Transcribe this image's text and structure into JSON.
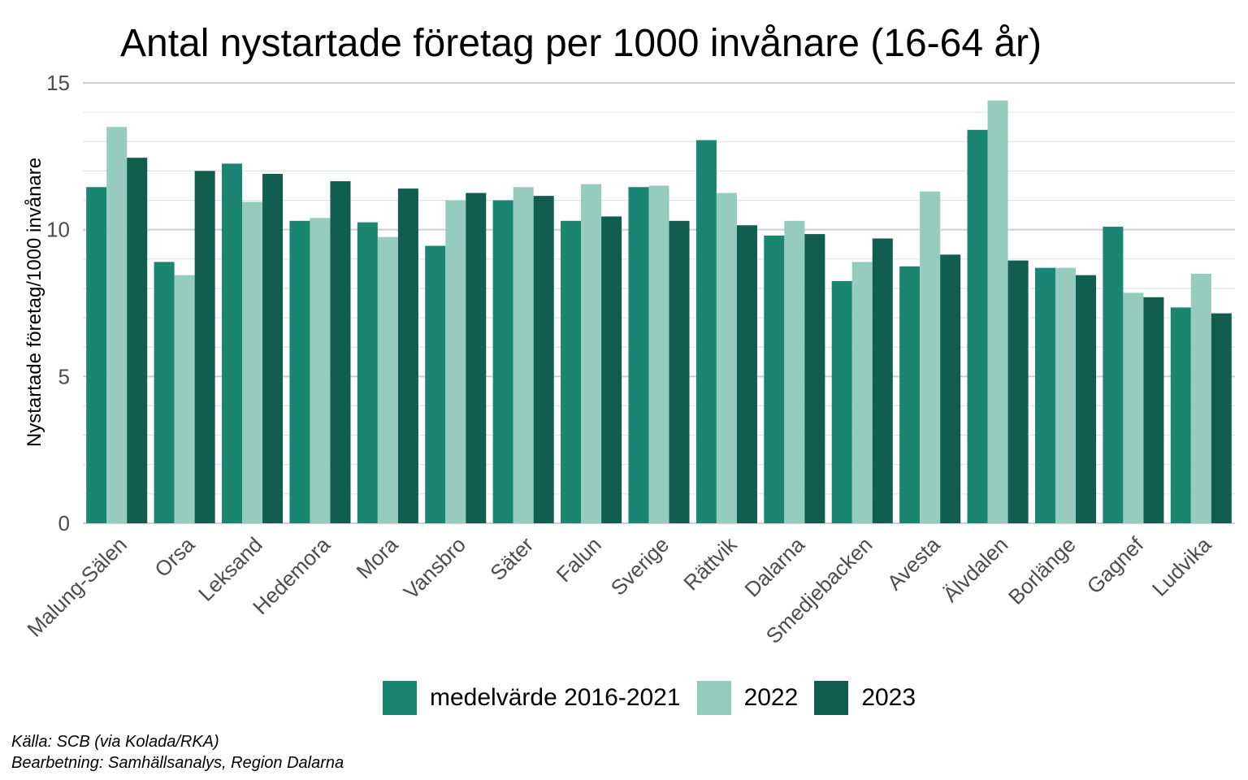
{
  "title": "Antal nystartade företag per 1000 invånare (16-64 år)",
  "caption": {
    "line1": "Källa: SCB (via Kolada/RKA)",
    "line2": "Bearbetning: Samhällsanalys, Region Dalarna"
  },
  "colors": {
    "medel": "#1a8571",
    "y2022": "#95ccbe",
    "y2023": "#115e51",
    "grid_major": "#d0d0d0",
    "grid_minor": "#e2e2e2",
    "tick_text": "#4d4d4d"
  },
  "chart_data": {
    "type": "bar",
    "title": "Antal nystartade företag per 1000 invånare (16-64 år)",
    "xlabel": "",
    "ylabel": "Nystartade företag/1000 invånare",
    "ylim": [
      0,
      15
    ],
    "yticks": [
      0,
      5,
      10,
      15
    ],
    "grid": true,
    "legend_position": "bottom",
    "categories": [
      "Malung-Sälen",
      "Orsa",
      "Leksand",
      "Hedemora",
      "Mora",
      "Vansbro",
      "Säter",
      "Falun",
      "Sverige",
      "Rättvik",
      "Dalarna",
      "Smedjebacken",
      "Avesta",
      "Älvdalen",
      "Borlänge",
      "Gagnef",
      "Ludvika"
    ],
    "series": [
      {
        "name": "medelvärde 2016-2021",
        "color_key": "medel",
        "values": [
          11.45,
          8.9,
          12.25,
          10.3,
          10.25,
          9.45,
          11.0,
          10.3,
          11.45,
          13.05,
          9.8,
          8.25,
          8.75,
          13.4,
          8.7,
          10.1,
          7.35
        ]
      },
      {
        "name": "2022",
        "color_key": "y2022",
        "values": [
          13.5,
          8.45,
          10.95,
          10.4,
          9.75,
          11.0,
          11.45,
          11.55,
          11.5,
          11.25,
          10.3,
          8.9,
          11.3,
          14.4,
          8.7,
          7.85,
          8.5
        ]
      },
      {
        "name": "2023",
        "color_key": "y2023",
        "values": [
          12.45,
          12.0,
          11.9,
          11.65,
          11.4,
          11.25,
          11.15,
          10.45,
          10.3,
          10.15,
          9.85,
          9.7,
          9.15,
          8.95,
          8.45,
          7.7,
          7.15
        ]
      }
    ]
  }
}
